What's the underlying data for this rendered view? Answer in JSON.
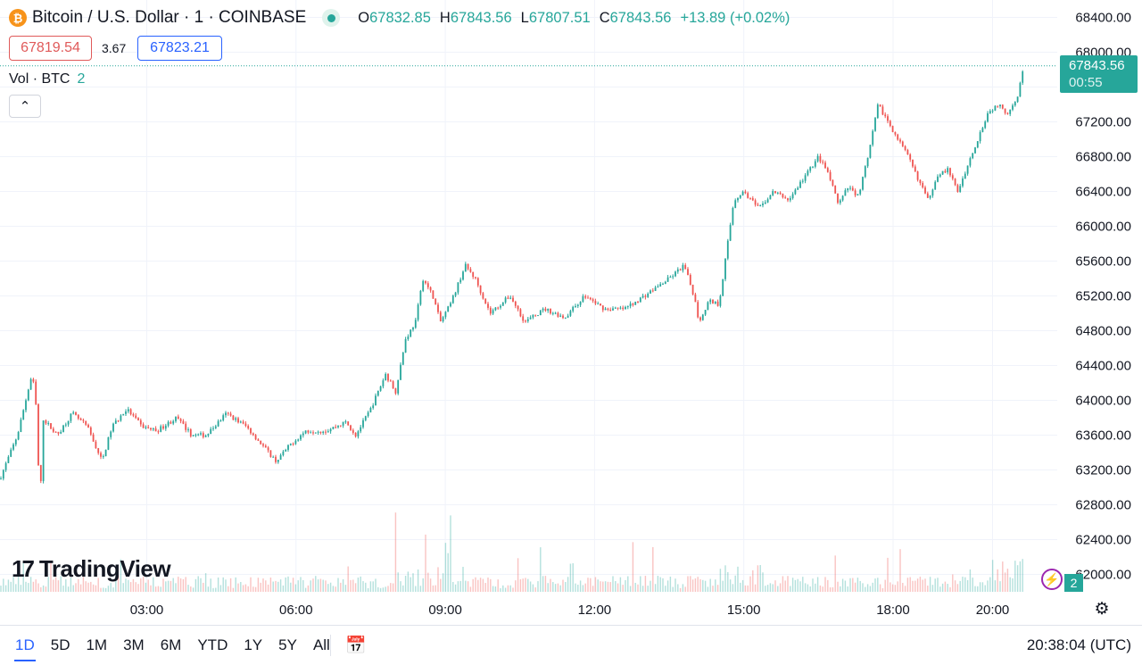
{
  "header": {
    "symbol_logo": "₿",
    "title": "Bitcoin / U.S. Dollar · 1 · COINBASE",
    "ohlc": [
      {
        "key": "O",
        "value": "67832.85"
      },
      {
        "key": "H",
        "value": "67843.56"
      },
      {
        "key": "L",
        "value": "67807.51"
      },
      {
        "key": "C",
        "value": "67843.56"
      }
    ],
    "change": "+13.89 (+0.02%)"
  },
  "quote": {
    "sell": "67819.54",
    "spread": "3.67",
    "buy": "67823.21"
  },
  "volume_legend": {
    "label": "Vol · BTC",
    "value": "2"
  },
  "collapse_icon": "chevron-up-icon",
  "watermark": {
    "mark": "17",
    "text": "TradingView"
  },
  "last_price": {
    "price": "67843.56",
    "countdown": "00:55",
    "value": 67843.56,
    "color": "#26a69a"
  },
  "volume_badge": "2",
  "flash_icon": "lightning-icon",
  "timeframes": [
    {
      "label": "1D",
      "active": true
    },
    {
      "label": "5D"
    },
    {
      "label": "1M"
    },
    {
      "label": "3M"
    },
    {
      "label": "6M"
    },
    {
      "label": "YTD"
    },
    {
      "label": "1Y"
    },
    {
      "label": "5Y"
    },
    {
      "label": "All"
    }
  ],
  "clock": "20:38:04 (UTC)",
  "colors": {
    "up": "#26a69a",
    "down": "#ef5350",
    "grid": "#f0f3fa",
    "axis_text": "#131722"
  },
  "chart_data": {
    "type": "candlestick",
    "ylim": [
      61800,
      68600
    ],
    "y_ticks": [
      "68400.00",
      "68000.00",
      "67600.00",
      "67200.00",
      "66800.00",
      "66400.00",
      "66000.00",
      "65600.00",
      "65200.00",
      "64800.00",
      "64400.00",
      "64000.00",
      "63600.00",
      "63200.00",
      "62800.00",
      "62400.00",
      "62000.00"
    ],
    "x_ticks": [
      "03:00",
      "06:00",
      "09:00",
      "12:00",
      "15:00",
      "18:00",
      "20:00"
    ],
    "x_tick_hours": [
      3,
      6,
      9,
      12,
      15,
      18,
      20
    ],
    "x_range_hours": [
      0.05,
      21.3
    ],
    "last_hour": 20.63,
    "path": [
      [
        0.05,
        63100
      ],
      [
        0.4,
        63600
      ],
      [
        0.65,
        64200
      ],
      [
        0.7,
        64300
      ],
      [
        0.8,
        63800
      ],
      [
        0.85,
        62500
      ],
      [
        0.9,
        63800
      ],
      [
        1.2,
        63600
      ],
      [
        1.5,
        63850
      ],
      [
        1.8,
        63700
      ],
      [
        2.1,
        63300
      ],
      [
        2.3,
        63700
      ],
      [
        2.6,
        63900
      ],
      [
        2.9,
        63700
      ],
      [
        3.2,
        63650
      ],
      [
        3.6,
        63800
      ],
      [
        3.9,
        63600
      ],
      [
        4.2,
        63600
      ],
      [
        4.6,
        63850
      ],
      [
        5.0,
        63700
      ],
      [
        5.3,
        63500
      ],
      [
        5.6,
        63300
      ],
      [
        5.9,
        63500
      ],
      [
        6.2,
        63650
      ],
      [
        6.6,
        63650
      ],
      [
        7.0,
        63750
      ],
      [
        7.2,
        63600
      ],
      [
        7.5,
        63900
      ],
      [
        7.8,
        64300
      ],
      [
        8.0,
        64100
      ],
      [
        8.2,
        64700
      ],
      [
        8.4,
        64900
      ],
      [
        8.55,
        65400
      ],
      [
        8.75,
        65200
      ],
      [
        8.9,
        64900
      ],
      [
        9.1,
        65100
      ],
      [
        9.4,
        65550
      ],
      [
        9.6,
        65400
      ],
      [
        9.9,
        65000
      ],
      [
        10.3,
        65200
      ],
      [
        10.6,
        64900
      ],
      [
        11.0,
        65050
      ],
      [
        11.4,
        64950
      ],
      [
        11.8,
        65200
      ],
      [
        12.2,
        65050
      ],
      [
        12.6,
        65050
      ],
      [
        13.0,
        65200
      ],
      [
        13.5,
        65400
      ],
      [
        13.8,
        65550
      ],
      [
        14.0,
        65200
      ],
      [
        14.1,
        64900
      ],
      [
        14.3,
        65150
      ],
      [
        14.5,
        65100
      ],
      [
        14.65,
        65700
      ],
      [
        14.8,
        66300
      ],
      [
        15.0,
        66400
      ],
      [
        15.3,
        66200
      ],
      [
        15.6,
        66400
      ],
      [
        15.9,
        66300
      ],
      [
        16.2,
        66550
      ],
      [
        16.5,
        66800
      ],
      [
        16.7,
        66600
      ],
      [
        16.9,
        66250
      ],
      [
        17.1,
        66450
      ],
      [
        17.3,
        66350
      ],
      [
        17.5,
        66800
      ],
      [
        17.7,
        67400
      ],
      [
        17.9,
        67200
      ],
      [
        18.1,
        67000
      ],
      [
        18.3,
        66800
      ],
      [
        18.5,
        66550
      ],
      [
        18.7,
        66300
      ],
      [
        18.9,
        66600
      ],
      [
        19.1,
        66650
      ],
      [
        19.3,
        66400
      ],
      [
        19.5,
        66700
      ],
      [
        19.7,
        67000
      ],
      [
        19.9,
        67300
      ],
      [
        20.1,
        67400
      ],
      [
        20.3,
        67300
      ],
      [
        20.5,
        67500
      ],
      [
        20.63,
        67843
      ]
    ]
  }
}
